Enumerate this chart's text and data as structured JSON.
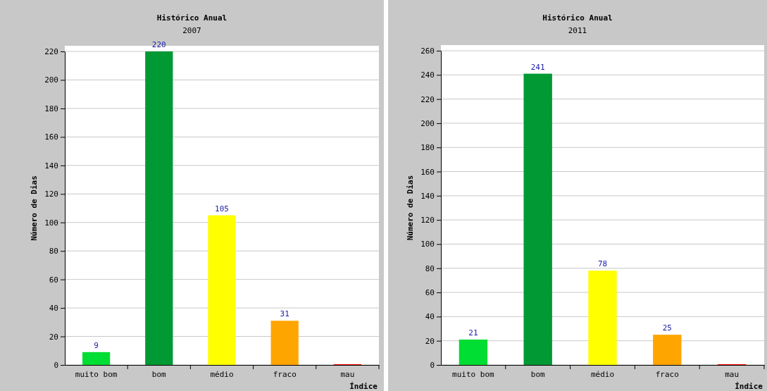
{
  "chart_data": [
    {
      "type": "bar",
      "title": "Histórico Anual",
      "subtitle": "2007",
      "xlabel": "Índice",
      "ylabel": "Número de Dias",
      "categories": [
        "muito bom",
        "bom",
        "médio",
        "fraco",
        "mau"
      ],
      "values": [
        9,
        220,
        105,
        31,
        0
      ],
      "colors": [
        "#00dd33",
        "#009933",
        "#ffff00",
        "#ffa500",
        "#ff0000"
      ],
      "value_labels": [
        "9",
        "220",
        "105",
        "31",
        null
      ],
      "ylim": [
        0,
        220
      ],
      "yticks": [
        0,
        20,
        40,
        60,
        80,
        100,
        120,
        140,
        160,
        180,
        200,
        220
      ],
      "grid": "y"
    },
    {
      "type": "bar",
      "title": "Histórico Anual",
      "subtitle": "2011",
      "xlabel": "Índice",
      "ylabel": "Número de Dias",
      "categories": [
        "muito bom",
        "bom",
        "médio",
        "fraco",
        "mau"
      ],
      "values": [
        21,
        241,
        78,
        25,
        0
      ],
      "colors": [
        "#00dd33",
        "#009933",
        "#ffff00",
        "#ffa500",
        "#ff0000"
      ],
      "value_labels": [
        "21",
        "241",
        "78",
        "25",
        null
      ],
      "ylim": [
        0,
        260
      ],
      "yticks": [
        0,
        20,
        40,
        60,
        80,
        100,
        120,
        140,
        160,
        180,
        200,
        220,
        240,
        260
      ],
      "grid": "y"
    }
  ]
}
